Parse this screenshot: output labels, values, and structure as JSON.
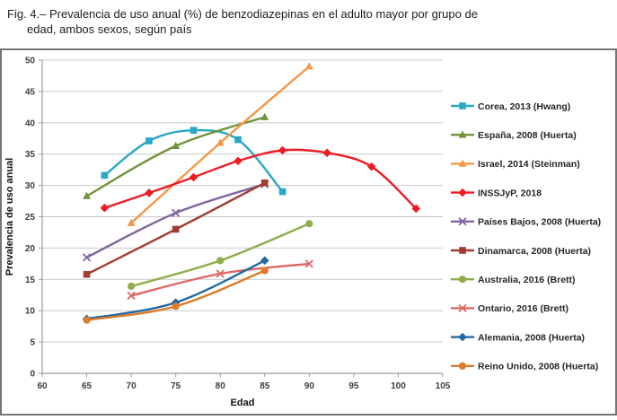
{
  "figure": {
    "caption_line1": "Fig. 4.– Prevalencia de uso anual (%) de benzodiazepinas en el adulto mayor por grupo de",
    "caption_line2": "edad, ambos sexos, según país"
  },
  "chart_data": {
    "type": "line",
    "title": "",
    "xlabel": "Edad",
    "ylabel": "Prevalencia de uso anual",
    "xlim": [
      60,
      105
    ],
    "ylim": [
      0,
      50
    ],
    "xticks": [
      60,
      65,
      70,
      75,
      80,
      85,
      90,
      95,
      100,
      105
    ],
    "yticks": [
      0,
      5,
      10,
      15,
      20,
      25,
      30,
      35,
      40,
      45,
      50
    ],
    "grid": "horizontal",
    "legend_position": "right",
    "colors": {
      "grid": "#c9c9c9",
      "axis": "#9b9b9b"
    },
    "series": [
      {
        "name": "Corea, 2013 (Hwang)",
        "color": "#27a8c4",
        "marker": "square",
        "x": [
          67,
          72,
          77,
          82,
          87
        ],
        "y": [
          31.6,
          37.1,
          38.8,
          37.3,
          29.0
        ]
      },
      {
        "name": "España, 2008 (Huerta)",
        "color": "#71933c",
        "marker": "triangle",
        "x": [
          65,
          75,
          85
        ],
        "y": [
          28.3,
          36.3,
          40.9
        ]
      },
      {
        "name": "Israel, 2014 (Steinman)",
        "color": "#f79646",
        "marker": "triangle",
        "x": [
          70,
          80,
          90
        ],
        "y": [
          24.0,
          36.8,
          49.0
        ]
      },
      {
        "name": "INSSJyP, 2018",
        "color": "#ed1c24",
        "marker": "diamond",
        "x": [
          67,
          72,
          77,
          82,
          87,
          92,
          97,
          102
        ],
        "y": [
          26.4,
          28.8,
          31.3,
          33.9,
          35.6,
          35.2,
          33.0,
          26.3
        ]
      },
      {
        "name": "Países Bajos, 2008 (Huerta)",
        "color": "#8064a2",
        "marker": "x",
        "x": [
          65,
          75,
          85
        ],
        "y": [
          18.5,
          25.6,
          30.2
        ]
      },
      {
        "name": "Dinamarca, 2008 (Huerta)",
        "color": "#a13d33",
        "marker": "square",
        "x": [
          65,
          75,
          85
        ],
        "y": [
          15.8,
          23.0,
          30.4
        ]
      },
      {
        "name": "Australia, 2016 (Brett)",
        "color": "#8fae4b",
        "marker": "circle",
        "x": [
          70,
          80,
          90
        ],
        "y": [
          13.9,
          18.0,
          23.9
        ]
      },
      {
        "name": "Ontario, 2016 (Brett)",
        "color": "#dd6864",
        "marker": "x",
        "x": [
          70,
          80,
          90
        ],
        "y": [
          12.4,
          15.9,
          17.5
        ]
      },
      {
        "name": "Alemania, 2008 (Huerta)",
        "color": "#2368a2",
        "marker": "diamond",
        "x": [
          65,
          75,
          85
        ],
        "y": [
          8.7,
          11.3,
          18.0
        ]
      },
      {
        "name": "Reino Unido, 2008 (Huerta)",
        "color": "#db7c2b",
        "marker": "circle",
        "x": [
          65,
          75,
          85
        ],
        "y": [
          8.5,
          10.7,
          16.4
        ]
      }
    ]
  }
}
